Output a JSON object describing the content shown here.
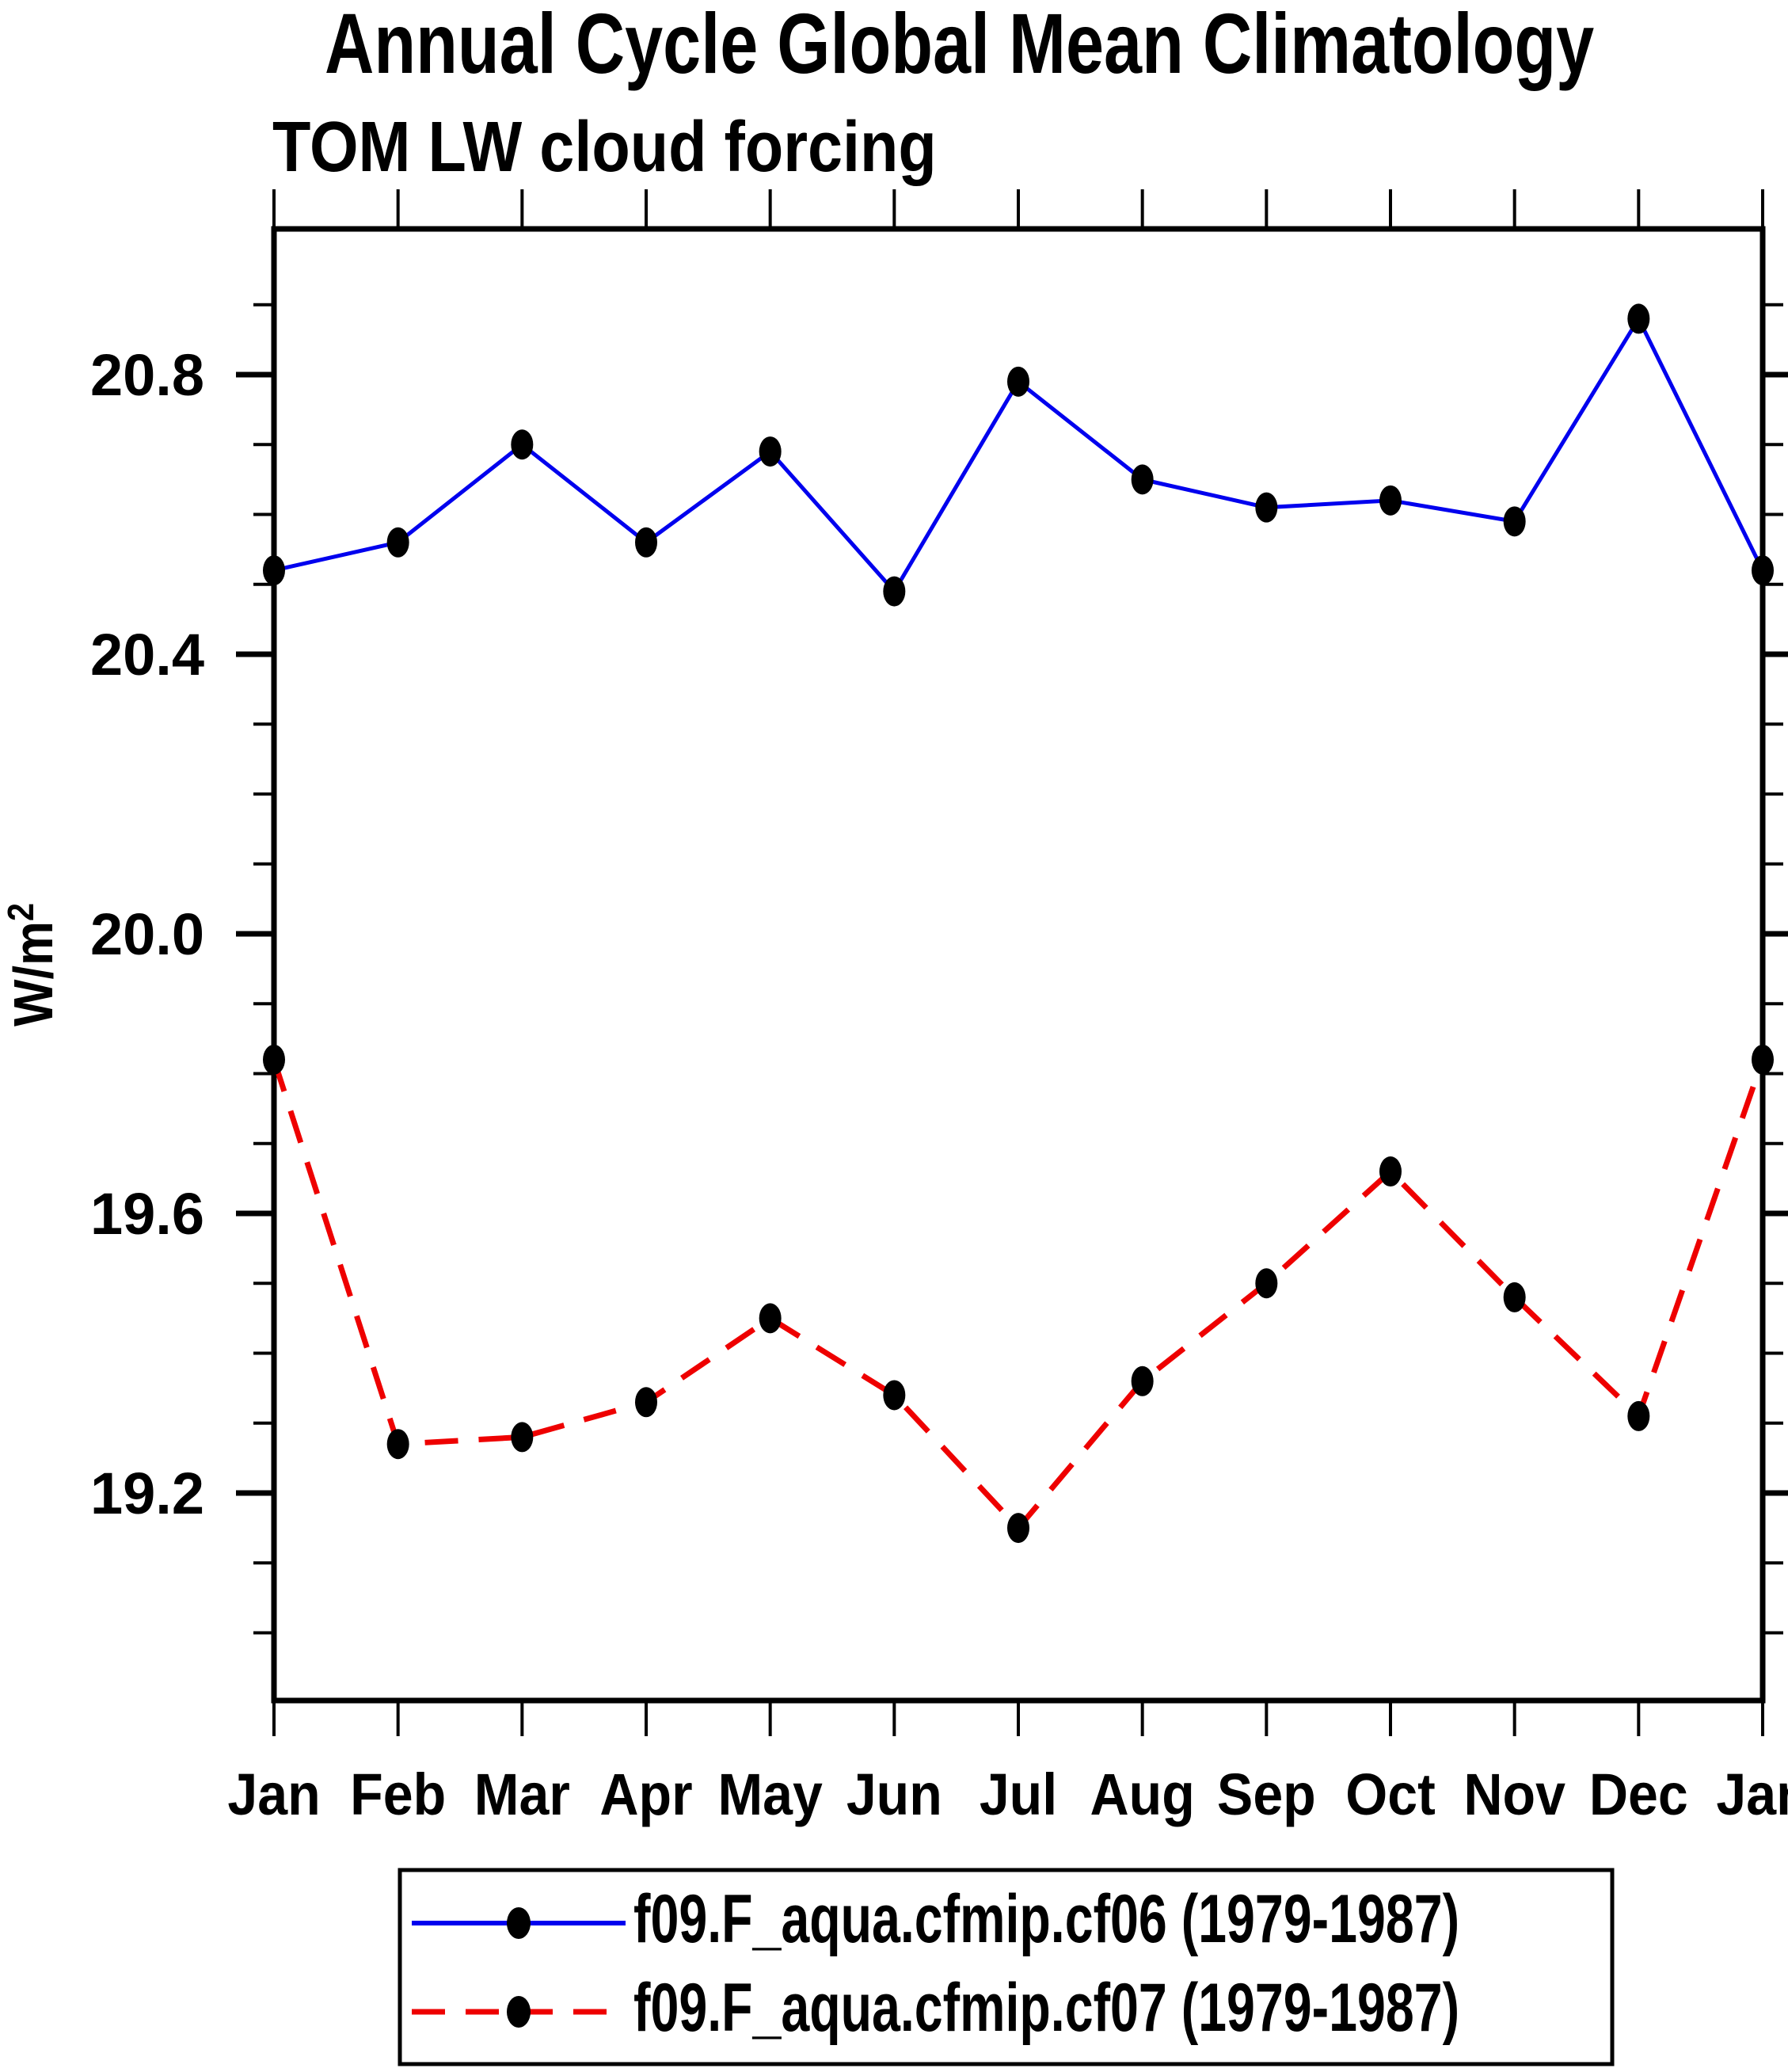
{
  "title": "Annual Cycle Global Mean Climatology",
  "subtitle": "TOM LW cloud forcing",
  "y_axis": {
    "label_base": "W/m",
    "label_exp": "2",
    "tick_labels": [
      "20.8",
      "20.4",
      "20.0",
      "19.6",
      "19.2"
    ]
  },
  "x_axis": {
    "tick_labels": [
      "Jan",
      "Feb",
      "Mar",
      "Apr",
      "May",
      "Jun",
      "Jul",
      "Aug",
      "Sep",
      "Oct",
      "Nov",
      "Dec",
      "Jan"
    ]
  },
  "legend": {
    "entries": [
      {
        "label": "f09.F_aqua.cfmip.cf06 (1979-1987)",
        "color": "#0000ee",
        "line_style": "solid",
        "marker": "filled-black-ellipse"
      },
      {
        "label": "f09.F_aqua.cfmip.cf07 (1979-1987)",
        "color": "#ee0000",
        "line_style": "dashed",
        "marker": "filled-black-ellipse"
      }
    ]
  },
  "chart_data": {
    "type": "line",
    "title": "Annual Cycle Global Mean Climatology",
    "subtitle": "TOM LW cloud forcing",
    "xlabel": "",
    "ylabel": "W/m^2",
    "categories": [
      "Jan",
      "Feb",
      "Mar",
      "Apr",
      "May",
      "Jun",
      "Jul",
      "Aug",
      "Sep",
      "Oct",
      "Nov",
      "Dec",
      "Jan"
    ],
    "series": [
      {
        "name": "f09.F_aqua.cfmip.cf06 (1979-1987)",
        "color": "#0000ee",
        "style": "solid",
        "marker_color": "#000000",
        "values": [
          20.52,
          20.56,
          20.7,
          20.56,
          20.69,
          20.49,
          20.79,
          20.65,
          20.61,
          20.62,
          20.59,
          20.88,
          20.52
        ]
      },
      {
        "name": "f09.F_aqua.cfmip.cf07 (1979-1987)",
        "color": "#ee0000",
        "style": "dashed",
        "marker_color": "#000000",
        "values": [
          19.82,
          19.27,
          19.28,
          19.33,
          19.45,
          19.34,
          19.15,
          19.36,
          19.5,
          19.66,
          19.48,
          19.31,
          19.82
        ]
      }
    ],
    "ylim": [
      18.9,
      21.01
    ],
    "yticks_major": [
      20.8,
      20.4,
      20.0,
      19.6,
      19.2
    ],
    "ytick_minor_interval": 0.1,
    "grid": false,
    "legend_position": "bottom"
  }
}
